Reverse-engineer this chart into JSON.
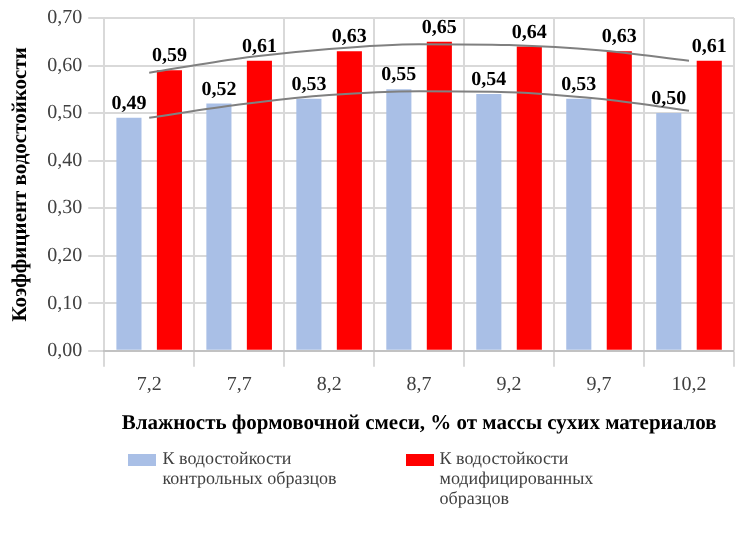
{
  "chart_data": {
    "type": "bar",
    "xlabel": "Влажность формовочной смеси, % от массы сухих материалов",
    "ylabel": "Коэффициент водостойкости",
    "categories": [
      "7,2",
      "7,7",
      "8,2",
      "8,7",
      "9,2",
      "9,7",
      "10,2"
    ],
    "series": [
      {
        "name": "К водостойкости контрольных образцов",
        "color": "#a9bfe6",
        "values": [
          0.49,
          0.52,
          0.53,
          0.55,
          0.54,
          0.53,
          0.5
        ],
        "value_labels": [
          "0,49",
          "0,52",
          "0,53",
          "0,55",
          "0,54",
          "0,53",
          "0,50"
        ]
      },
      {
        "name": "К водостойкости модифицированных образцов",
        "color": "#ff0000",
        "values": [
          0.59,
          0.61,
          0.63,
          0.65,
          0.64,
          0.63,
          0.61
        ],
        "value_labels": [
          "0,59",
          "0,61",
          "0,63",
          "0,65",
          "0,64",
          "0,63",
          "0,61"
        ]
      },
      {
        "type": "line",
        "color": "#808080",
        "values": [
          0.49,
          0.518,
          0.538,
          0.546,
          0.544,
          0.53,
          0.505
        ]
      },
      {
        "type": "line",
        "color": "#808080",
        "values": [
          0.585,
          0.615,
          0.635,
          0.645,
          0.643,
          0.632,
          0.61
        ]
      }
    ],
    "ylim": [
      0,
      0.7
    ],
    "yticks": [
      {
        "value": 0,
        "label": "0,00"
      },
      {
        "value": 0.1,
        "label": "0,10"
      },
      {
        "value": 0.2,
        "label": "0,20"
      },
      {
        "value": 0.3,
        "label": "0,30"
      },
      {
        "value": 0.4,
        "label": "0,40"
      },
      {
        "value": 0.5,
        "label": "0,50"
      },
      {
        "value": 0.6,
        "label": "0,60"
      },
      {
        "value": 0.7,
        "label": "0,70"
      }
    ],
    "grid": true,
    "legend": "bottom",
    "marker": "none"
  }
}
